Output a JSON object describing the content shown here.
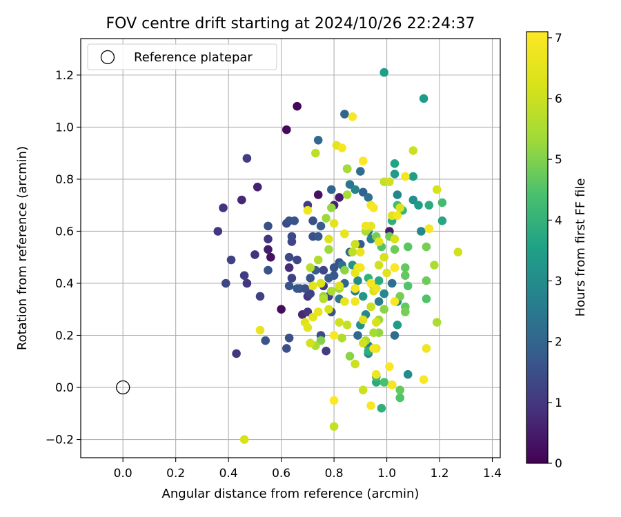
{
  "chart_data": {
    "type": "scatter",
    "title": "FOV centre drift starting at 2024/10/26 22:24:37",
    "xlabel": "Angular distance from reference (arcmin)",
    "ylabel": "Rotation from reference (arcmin)",
    "xlim": [
      -0.16,
      1.43
    ],
    "ylim": [
      -0.27,
      1.34
    ],
    "xticks": [
      "0.0",
      "0.2",
      "0.4",
      "0.6",
      "0.8",
      "1.0",
      "1.2",
      "1.4"
    ],
    "yticks": [
      "−0.2",
      "0.0",
      "0.2",
      "0.4",
      "0.6",
      "0.8",
      "1.0",
      "1.2"
    ],
    "grid": true,
    "legend": {
      "position": "top-left",
      "entries": [
        "Reference platepar"
      ]
    },
    "reference_point": {
      "name": "Reference platepar",
      "x": 0.0,
      "y": 0.0
    },
    "colorbar": {
      "label": "Hours from first FF file",
      "range": [
        0,
        7.1
      ],
      "ticks": [
        "0",
        "1",
        "2",
        "3",
        "4",
        "5",
        "6",
        "7"
      ],
      "colormap": "viridis"
    },
    "series": [
      {
        "points": [
          [
            0.66,
            1.08,
            0.1
          ],
          [
            0.62,
            0.99,
            0.15
          ],
          [
            0.6,
            0.3,
            0.2
          ],
          [
            0.56,
            0.5,
            0.3
          ],
          [
            0.55,
            0.53,
            0.5
          ],
          [
            0.51,
            0.77,
            0.6
          ],
          [
            0.45,
            0.72,
            0.7
          ],
          [
            0.38,
            0.69,
            0.9
          ],
          [
            0.36,
            0.6,
            1.0
          ],
          [
            0.47,
            0.88,
            1.1
          ],
          [
            0.41,
            0.49,
            1.2
          ],
          [
            0.55,
            0.57,
            1.0
          ],
          [
            0.5,
            0.51,
            0.9
          ],
          [
            0.46,
            0.43,
            1.1
          ],
          [
            0.47,
            0.4,
            1.0
          ],
          [
            0.43,
            0.13,
            1.0
          ],
          [
            0.52,
            0.35,
            1.2
          ],
          [
            0.39,
            0.4,
            1.3
          ],
          [
            0.63,
            0.46,
            0.8
          ],
          [
            0.68,
            0.28,
            0.7
          ],
          [
            0.7,
            0.29,
            1.0
          ],
          [
            0.67,
            0.38,
            1.4
          ],
          [
            0.64,
            0.42,
            1.2
          ],
          [
            0.62,
            0.15,
            1.5
          ],
          [
            0.63,
            0.19,
            1.5
          ],
          [
            0.54,
            0.18,
            1.6
          ],
          [
            0.55,
            0.62,
            1.5
          ],
          [
            0.55,
            0.45,
            1.6
          ],
          [
            0.62,
            0.63,
            1.4
          ],
          [
            0.63,
            0.64,
            1.5
          ],
          [
            0.65,
            0.64,
            1.6
          ],
          [
            0.64,
            0.58,
            1.4
          ],
          [
            0.64,
            0.56,
            1.3
          ],
          [
            0.66,
            0.49,
            1.3
          ],
          [
            0.63,
            0.5,
            1.4
          ],
          [
            0.7,
            0.35,
            1.0
          ],
          [
            0.71,
            0.36,
            1.2
          ],
          [
            0.69,
            0.38,
            1.5
          ],
          [
            0.63,
            0.39,
            1.6
          ],
          [
            0.66,
            0.38,
            1.7
          ],
          [
            0.71,
            0.42,
            1.6
          ],
          [
            0.73,
            0.45,
            1.8
          ],
          [
            0.74,
            0.58,
            1.7
          ],
          [
            0.72,
            0.58,
            1.5
          ],
          [
            0.7,
            0.7,
            1.1
          ],
          [
            0.72,
            0.64,
            1.5
          ],
          [
            0.74,
            0.74,
            0.3
          ],
          [
            0.76,
            0.45,
            1.3
          ],
          [
            0.76,
            0.39,
            1.0
          ],
          [
            0.78,
            0.42,
            1.8
          ],
          [
            0.8,
            0.46,
            1.6
          ],
          [
            0.82,
            0.48,
            1.5
          ],
          [
            0.8,
            0.43,
            1.7
          ],
          [
            0.78,
            0.35,
            1.3
          ],
          [
            0.79,
            0.29,
            1.5
          ],
          [
            0.82,
            0.34,
            2.4
          ],
          [
            0.84,
            0.4,
            2.0
          ],
          [
            0.83,
            0.47,
            2.3
          ],
          [
            0.75,
            0.62,
            1.8
          ],
          [
            0.8,
            0.7,
            0.6
          ],
          [
            0.79,
            0.76,
            2.0
          ],
          [
            0.82,
            0.73,
            0.5
          ],
          [
            0.84,
            1.05,
            2.0
          ],
          [
            0.74,
            0.95,
            2.1
          ],
          [
            0.77,
            0.14,
            1.1
          ],
          [
            0.75,
            0.2,
            1.4
          ],
          [
            0.85,
            0.84,
            1.9
          ],
          [
            0.86,
            0.78,
            2.4
          ],
          [
            0.88,
            0.76,
            2.8
          ],
          [
            0.91,
            0.75,
            1.9
          ],
          [
            0.9,
            0.83,
            2.2
          ],
          [
            0.93,
            0.73,
            2.3
          ],
          [
            0.93,
            0.6,
            2.2
          ],
          [
            0.94,
            0.57,
            2.7
          ],
          [
            0.9,
            0.55,
            1.8
          ],
          [
            0.86,
            0.52,
            2.1
          ],
          [
            0.87,
            0.47,
            3.2
          ],
          [
            0.89,
            0.41,
            3.0
          ],
          [
            0.88,
            0.37,
            2.6
          ],
          [
            0.91,
            0.35,
            3.3
          ],
          [
            0.92,
            0.28,
            2.9
          ],
          [
            0.9,
            0.24,
            3.1
          ],
          [
            0.89,
            0.2,
            2.1
          ],
          [
            0.93,
            0.16,
            2.6
          ],
          [
            0.93,
            0.13,
            3.0
          ],
          [
            0.97,
            0.33,
            2.6
          ],
          [
            0.99,
            0.36,
            2.9
          ],
          [
            1.01,
            0.6,
            0.5
          ],
          [
            1.02,
            0.4,
            2.3
          ],
          [
            1.04,
            0.33,
            3.0
          ],
          [
            1.04,
            0.24,
            3.4
          ],
          [
            1.03,
            0.2,
            2.2
          ],
          [
            1.08,
            0.05,
            3.0
          ],
          [
            1.03,
            0.86,
            3.6
          ],
          [
            0.99,
            1.21,
            3.5
          ],
          [
            1.14,
            1.11,
            3.4
          ],
          [
            1.03,
            0.82,
            3.4
          ],
          [
            1.1,
            0.81,
            3.5
          ],
          [
            1.04,
            0.74,
            2.8
          ],
          [
            1.1,
            0.72,
            3.1
          ],
          [
            1.13,
            0.6,
            2.9
          ],
          [
            1.12,
            0.7,
            3.4
          ],
          [
            1.16,
            0.7,
            3.8
          ],
          [
            1.21,
            0.71,
            4.3
          ],
          [
            1.21,
            0.64,
            3.7
          ],
          [
            1.06,
            0.68,
            4.1
          ],
          [
            1.02,
            0.64,
            3.9
          ],
          [
            1.04,
            0.7,
            4.3
          ],
          [
            0.97,
            0.41,
            3.8
          ],
          [
            0.95,
            0.39,
            3.6
          ],
          [
            0.93,
            0.42,
            4.0
          ],
          [
            0.93,
            0.14,
            3.9
          ],
          [
            0.96,
            0.02,
            3.8
          ],
          [
            0.98,
            -0.08,
            3.9
          ],
          [
            0.96,
            0.04,
            4.2
          ],
          [
            0.99,
            0.02,
            4.4
          ],
          [
            1.02,
            0.01,
            4.3
          ],
          [
            1.05,
            -0.01,
            4.7
          ],
          [
            1.05,
            -0.04,
            4.5
          ],
          [
            1.08,
            0.54,
            4.6
          ],
          [
            1.15,
            0.54,
            4.9
          ],
          [
            1.15,
            0.34,
            4.5
          ],
          [
            1.15,
            0.41,
            4.8
          ],
          [
            1.05,
            0.35,
            4.9
          ],
          [
            1.07,
            0.31,
            4.7
          ],
          [
            1.07,
            0.29,
            4.9
          ],
          [
            1.08,
            0.39,
            4.5
          ],
          [
            1.07,
            0.43,
            4.7
          ],
          [
            1.07,
            0.46,
            4.7
          ],
          [
            1.03,
            0.46,
            4.6
          ],
          [
            1.03,
            0.53,
            4.8
          ],
          [
            1.01,
            0.58,
            4.8
          ],
          [
            0.98,
            0.54,
            4.5
          ],
          [
            0.96,
            0.58,
            4.9
          ],
          [
            0.93,
            0.61,
            5.0
          ],
          [
            0.92,
            0.6,
            5.5
          ],
          [
            0.99,
            0.3,
            5.1
          ],
          [
            0.97,
            0.26,
            5.3
          ],
          [
            0.97,
            0.21,
            5.2
          ],
          [
            0.95,
            0.21,
            5.4
          ],
          [
            0.84,
            0.45,
            5.1
          ],
          [
            0.82,
            0.38,
            5.3
          ],
          [
            0.76,
            0.35,
            5.2
          ],
          [
            0.79,
            0.37,
            5.5
          ],
          [
            0.76,
            0.34,
            5.7
          ],
          [
            0.75,
            0.18,
            5.0
          ],
          [
            0.73,
            0.16,
            5.5
          ],
          [
            0.71,
            0.46,
            5.7
          ],
          [
            0.74,
            0.49,
            5.6
          ],
          [
            0.78,
            0.53,
            5.3
          ],
          [
            0.77,
            0.65,
            5.3
          ],
          [
            0.79,
            0.69,
            5.2
          ],
          [
            0.85,
            0.74,
            5.5
          ],
          [
            0.85,
            0.84,
            5.4
          ],
          [
            0.87,
            0.52,
            5.8
          ],
          [
            0.88,
            0.55,
            6.0
          ],
          [
            0.85,
            0.24,
            5.9
          ],
          [
            0.82,
            0.25,
            6.1
          ],
          [
            0.83,
            0.19,
            5.6
          ],
          [
            0.86,
            0.12,
            5.1
          ],
          [
            0.88,
            0.09,
            6.0
          ],
          [
            0.91,
            0.17,
            6.1
          ],
          [
            0.92,
            0.18,
            5.6
          ],
          [
            0.91,
            -0.01,
            6.0
          ],
          [
            0.96,
            0.25,
            6.2
          ],
          [
            0.94,
            0.31,
            6.0
          ],
          [
            0.95,
            0.37,
            6.3
          ],
          [
            0.97,
            0.47,
            6.1
          ],
          [
            0.99,
            0.5,
            6.2
          ],
          [
            1.0,
            0.44,
            6.4
          ],
          [
            1.03,
            0.57,
            6.2
          ],
          [
            1.02,
            0.66,
            6.4
          ],
          [
            1.01,
            0.79,
            6.1
          ],
          [
            0.99,
            0.79,
            5.9
          ],
          [
            1.05,
            0.69,
            6.3
          ],
          [
            1.1,
            0.91,
            6.0
          ],
          [
            1.18,
            0.47,
            5.5
          ],
          [
            1.19,
            0.25,
            5.5
          ],
          [
            1.19,
            0.76,
            6.2
          ],
          [
            1.27,
            0.52,
            6.1
          ],
          [
            0.8,
            -0.15,
            5.9
          ],
          [
            0.46,
            -0.2,
            6.2
          ],
          [
            0.52,
            0.22,
            6.6
          ],
          [
            0.69,
            0.25,
            6.4
          ],
          [
            0.7,
            0.23,
            6.5
          ],
          [
            0.71,
            0.17,
            6.1
          ],
          [
            0.72,
            0.27,
            6.5
          ],
          [
            0.74,
            0.29,
            6.6
          ],
          [
            0.75,
            0.4,
            6.3
          ],
          [
            0.73,
            0.9,
            5.8
          ],
          [
            0.81,
            0.93,
            6.5
          ],
          [
            0.83,
            0.92,
            6.9
          ],
          [
            0.8,
            0.63,
            6.5
          ],
          [
            0.78,
            0.57,
            6.3
          ],
          [
            0.84,
            0.59,
            6.6
          ],
          [
            0.88,
            0.44,
            6.6
          ],
          [
            0.88,
            0.33,
            6.8
          ],
          [
            0.89,
            0.46,
            6.7
          ],
          [
            0.9,
            0.52,
            6.6
          ],
          [
            0.9,
            0.46,
            6.9
          ],
          [
            0.88,
            0.38,
            6.9
          ],
          [
            0.84,
            0.33,
            6.6
          ],
          [
            0.82,
            0.39,
            6.3
          ],
          [
            0.78,
            0.3,
            6.2
          ],
          [
            0.8,
            0.2,
            7.0
          ],
          [
            0.8,
            -0.05,
            7.1
          ],
          [
            0.87,
            1.04,
            7.0
          ],
          [
            0.91,
            0.87,
            7.1
          ],
          [
            0.92,
            0.62,
            6.8
          ],
          [
            0.94,
            0.7,
            6.9
          ],
          [
            0.95,
            0.69,
            7.0
          ],
          [
            0.94,
            0.62,
            6.6
          ],
          [
            0.96,
            0.38,
            6.7
          ],
          [
            0.94,
            0.4,
            6.9
          ],
          [
            0.95,
            0.15,
            6.9
          ],
          [
            0.96,
            0.15,
            6.6
          ],
          [
            0.94,
            -0.07,
            7.0
          ],
          [
            0.96,
            0.05,
            6.8
          ],
          [
            1.01,
            0.08,
            7.0
          ],
          [
            1.02,
            0.01,
            6.9
          ],
          [
            1.03,
            0.33,
            7.0
          ],
          [
            1.03,
            0.46,
            7.1
          ],
          [
            1.04,
            0.66,
            6.9
          ],
          [
            1.07,
            0.81,
            6.9
          ],
          [
            1.16,
            0.61,
            6.9
          ],
          [
            1.15,
            0.15,
            6.8
          ],
          [
            1.14,
            0.03,
            7.0
          ],
          [
            0.7,
            0.68,
            6.8
          ],
          [
            0.72,
            0.39,
            6.5
          ],
          [
            0.91,
            0.26,
            6.4
          ],
          [
            0.97,
            0.56,
            6.5
          ]
        ]
      }
    ]
  }
}
